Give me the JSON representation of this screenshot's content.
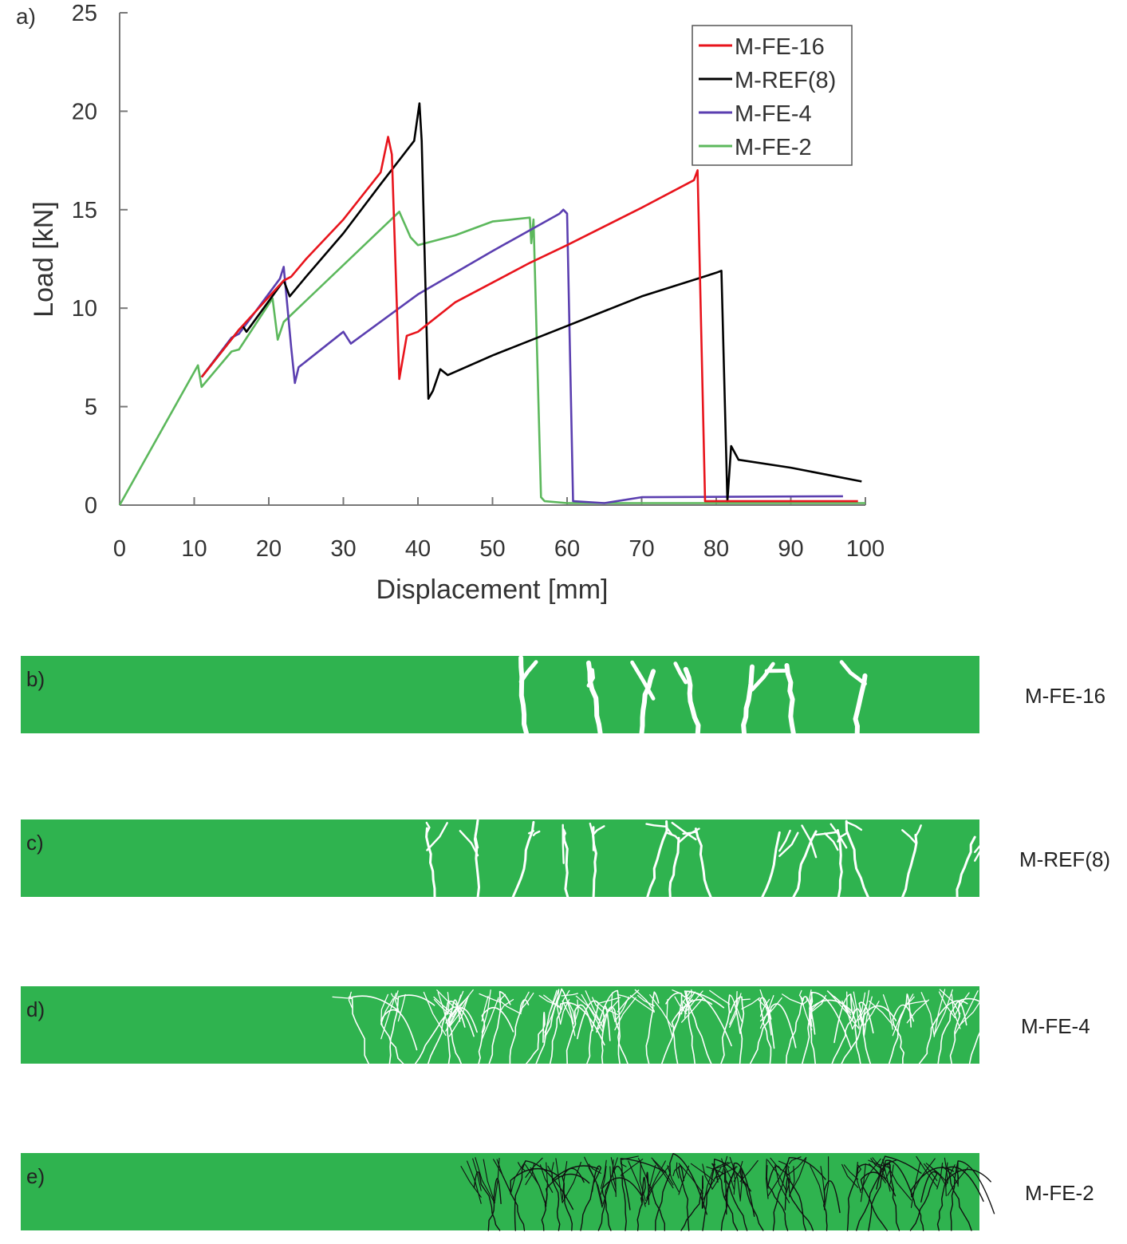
{
  "chart_data": {
    "type": "line",
    "panel_label": "a)",
    "xlabel": "Displacement [mm]",
    "ylabel": "Load [kN]",
    "xlim": [
      0,
      100
    ],
    "ylim": [
      0,
      25
    ],
    "xticks": [
      0,
      10,
      20,
      30,
      40,
      50,
      60,
      70,
      80,
      90,
      100
    ],
    "yticks": [
      0,
      5,
      10,
      15,
      20,
      25
    ],
    "grid": false,
    "legend_position": "top-right",
    "series": [
      {
        "name": "M-FE-16",
        "color": "#e8141c",
        "points": [
          [
            11,
            6.5
          ],
          [
            16,
            8.9
          ],
          [
            22,
            11.4
          ],
          [
            22.5,
            11.5
          ],
          [
            23,
            11.6
          ],
          [
            25,
            12.5
          ],
          [
            30,
            14.5
          ],
          [
            35,
            16.9
          ],
          [
            36,
            18.7
          ],
          [
            36.5,
            17.8
          ],
          [
            37.5,
            6.4
          ],
          [
            38.5,
            8.6
          ],
          [
            40,
            8.8
          ],
          [
            45,
            10.3
          ],
          [
            55,
            12.3
          ],
          [
            60,
            13.2
          ],
          [
            70,
            15.1
          ],
          [
            77,
            16.5
          ],
          [
            77.5,
            17.0
          ],
          [
            78.5,
            0.2
          ],
          [
            99,
            0.2
          ]
        ]
      },
      {
        "name": "M-REF(8)",
        "color": "#000000",
        "points": [
          [
            11,
            6.5
          ],
          [
            16,
            8.9
          ],
          [
            16.5,
            9.1
          ],
          [
            17,
            8.8
          ],
          [
            22,
            11.4
          ],
          [
            22.8,
            10.6
          ],
          [
            25,
            11.6
          ],
          [
            30,
            13.8
          ],
          [
            35,
            16.3
          ],
          [
            39.5,
            18.5
          ],
          [
            40.2,
            20.4
          ],
          [
            40.5,
            18.5
          ],
          [
            41.4,
            5.4
          ],
          [
            42,
            5.8
          ],
          [
            43,
            6.9
          ],
          [
            44,
            6.6
          ],
          [
            50,
            7.6
          ],
          [
            60,
            9.1
          ],
          [
            70,
            10.6
          ],
          [
            80,
            11.8
          ],
          [
            80.7,
            11.9
          ],
          [
            81.5,
            0.2
          ],
          [
            82,
            3.0
          ],
          [
            83,
            2.3
          ],
          [
            90,
            1.9
          ],
          [
            99.5,
            1.2
          ]
        ]
      },
      {
        "name": "M-FE-4",
        "color": "#5b3fb0",
        "points": [
          [
            11,
            6.5
          ],
          [
            15,
            8.5
          ],
          [
            16,
            8.7
          ],
          [
            21.5,
            11.5
          ],
          [
            22,
            12.1
          ],
          [
            23,
            8.0
          ],
          [
            23.5,
            6.2
          ],
          [
            24,
            7.0
          ],
          [
            25,
            7.3
          ],
          [
            30,
            8.8
          ],
          [
            31,
            8.2
          ],
          [
            40,
            10.7
          ],
          [
            50,
            12.9
          ],
          [
            59,
            14.8
          ],
          [
            59.5,
            15.0
          ],
          [
            60,
            14.8
          ],
          [
            60.8,
            0.2
          ],
          [
            65,
            0.1
          ],
          [
            70,
            0.4
          ],
          [
            97,
            0.45
          ]
        ]
      },
      {
        "name": "M-FE-2",
        "color": "#5cb85c",
        "points": [
          [
            0,
            0
          ],
          [
            10.5,
            7.1
          ],
          [
            11,
            6.0
          ],
          [
            15,
            7.8
          ],
          [
            16,
            7.9
          ],
          [
            20.5,
            10.5
          ],
          [
            21.2,
            8.4
          ],
          [
            22,
            9.3
          ],
          [
            37.5,
            14.9
          ],
          [
            39,
            13.6
          ],
          [
            40,
            13.2
          ],
          [
            45,
            13.7
          ],
          [
            50,
            14.4
          ],
          [
            55,
            14.6
          ],
          [
            55.2,
            13.3
          ],
          [
            55.5,
            14.5
          ],
          [
            56.5,
            0.4
          ],
          [
            57,
            0.2
          ],
          [
            60,
            0.1
          ],
          [
            100,
            0.1
          ]
        ]
      }
    ]
  },
  "crack_panels": [
    {
      "label": "b)",
      "specimen": "M-FE-16",
      "bar_color": "#2fb34f",
      "crack_color": "#ffffff"
    },
    {
      "label": "c)",
      "specimen": "M-REF(8)",
      "bar_color": "#2fb34f",
      "crack_color": "#ffffff"
    },
    {
      "label": "d)",
      "specimen": "M-FE-4",
      "bar_color": "#2fb34f",
      "crack_color": "#ffffff"
    },
    {
      "label": "e)",
      "specimen": "M-FE-2",
      "bar_color": "#2fb34f",
      "crack_color": "#111111"
    }
  ]
}
